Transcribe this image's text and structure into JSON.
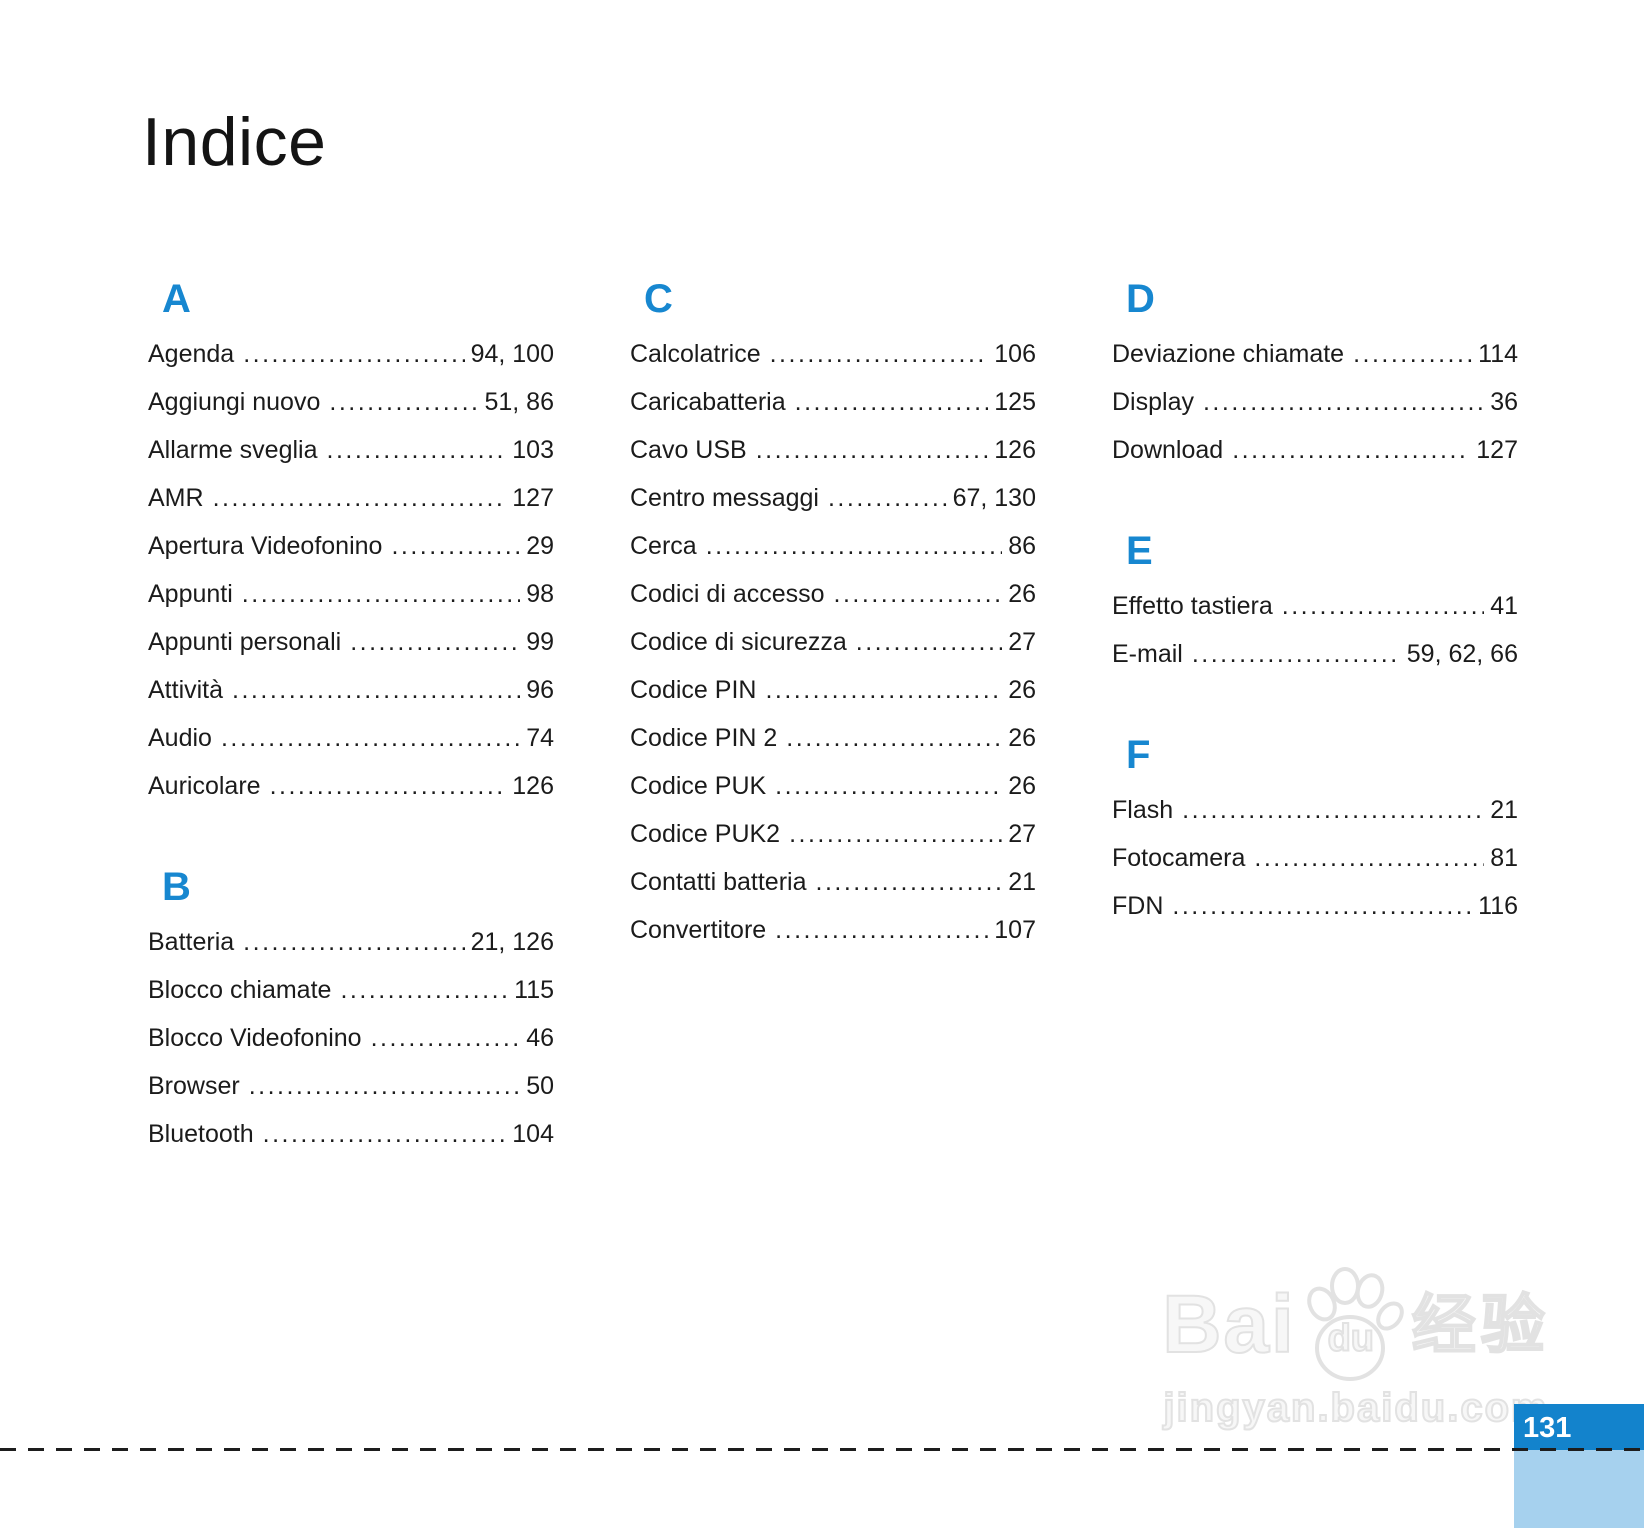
{
  "page": {
    "title": "Indice",
    "page_number": "131"
  },
  "index": {
    "columns": [
      {
        "sections": [
          {
            "letter": "A",
            "entries": [
              {
                "label": "Agenda",
                "pages": "94, 100"
              },
              {
                "label": "Aggiungi nuovo",
                "pages": "51, 86"
              },
              {
                "label": "Allarme sveglia",
                "pages": "103"
              },
              {
                "label": "AMR",
                "pages": "127"
              },
              {
                "label": "Apertura Videofonino",
                "pages": "29"
              },
              {
                "label": "Appunti",
                "pages": "98"
              },
              {
                "label": "Appunti personali",
                "pages": "99"
              },
              {
                "label": "Attività",
                "pages": "96"
              },
              {
                "label": "Audio",
                "pages": "74"
              },
              {
                "label": "Auricolare",
                "pages": "126"
              }
            ]
          },
          {
            "letter": "B",
            "entries": [
              {
                "label": "Batteria",
                "pages": "21, 126"
              },
              {
                "label": "Blocco chiamate",
                "pages": "115"
              },
              {
                "label": "Blocco Videofonino",
                "pages": "46"
              },
              {
                "label": "Browser",
                "pages": "50"
              },
              {
                "label": "Bluetooth",
                "pages": "104"
              }
            ]
          }
        ]
      },
      {
        "sections": [
          {
            "letter": "C",
            "entries": [
              {
                "label": "Calcolatrice",
                "pages": "106"
              },
              {
                "label": "Caricabatteria",
                "pages": "125"
              },
              {
                "label": "Cavo USB",
                "pages": "126"
              },
              {
                "label": "Centro messaggi",
                "pages": "67, 130"
              },
              {
                "label": "Cerca",
                "pages": "86"
              },
              {
                "label": "Codici di accesso",
                "pages": "26"
              },
              {
                "label": "Codice di sicurezza",
                "pages": "27"
              },
              {
                "label": "Codice PIN",
                "pages": "26"
              },
              {
                "label": "Codice PIN 2",
                "pages": "26"
              },
              {
                "label": "Codice PUK",
                "pages": "26"
              },
              {
                "label": "Codice PUK2",
                "pages": "27"
              },
              {
                "label": "Contatti batteria",
                "pages": "21"
              },
              {
                "label": "Convertitore",
                "pages": "107"
              }
            ]
          }
        ]
      },
      {
        "sections": [
          {
            "letter": "D",
            "entries": [
              {
                "label": "Deviazione chiamate",
                "pages": "114"
              },
              {
                "label": "Display",
                "pages": "36"
              },
              {
                "label": "Download",
                "pages": "127"
              }
            ]
          },
          {
            "letter": "E",
            "entries": [
              {
                "label": "Effetto tastiera",
                "pages": "41"
              },
              {
                "label": "E-mail",
                "pages": "59, 62, 66"
              }
            ]
          },
          {
            "letter": "F",
            "entries": [
              {
                "label": "Flash",
                "pages": "21"
              },
              {
                "label": "Fotocamera",
                "pages": "81"
              },
              {
                "label": "FDN",
                "pages": "116"
              }
            ]
          }
        ]
      }
    ]
  },
  "watermark": {
    "brand_bai": "Bai",
    "brand_du": "du",
    "brand_cn": "经验",
    "site": "jingyan.baidu.com"
  },
  "colors": {
    "accent_blue": "#1787d0",
    "page_tab_dark_blue": "#1383cc",
    "page_tab_light_blue": "#a6d1ee"
  }
}
